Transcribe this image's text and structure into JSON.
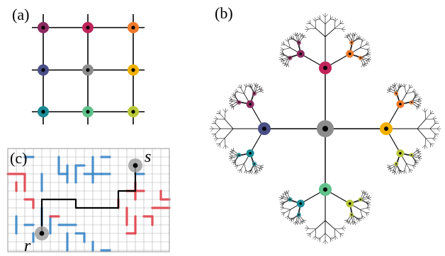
{
  "panels": {
    "a": {
      "label": "(a)"
    },
    "b": {
      "label": "(b)"
    },
    "c": {
      "label": "(c)",
      "start_label": "r",
      "end_label": "s"
    }
  },
  "node_colors": [
    [
      "#8a2a5f",
      "#c0245a",
      "#ef7a2a"
    ],
    [
      "#4a4e86",
      "#8c8c8c",
      "#f0b000"
    ],
    [
      "#1a8a94",
      "#5fc08a",
      "#b8c838"
    ]
  ],
  "colors": {
    "blue_segments": "#3a86c8",
    "red_segments": "#e0404a",
    "path": "#000000",
    "grid": "#b0b0b0",
    "endpoint_halo": "#9a9a9a"
  }
}
